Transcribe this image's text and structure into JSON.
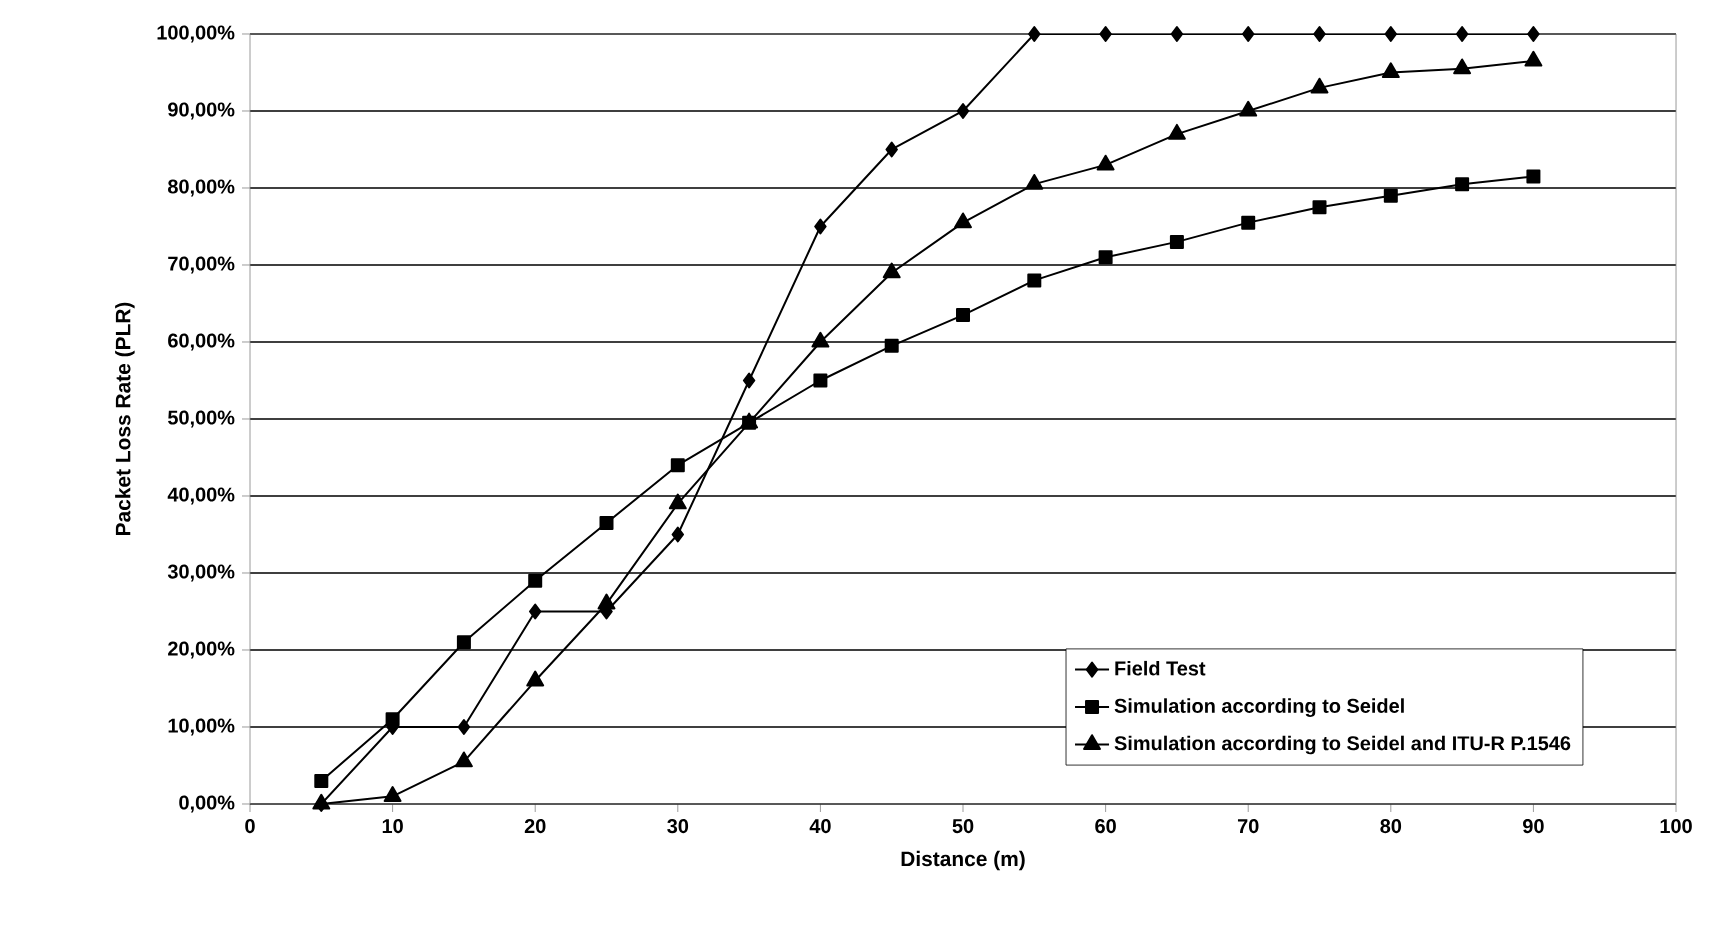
{
  "chart_data": {
    "type": "line",
    "xlabel": "Distance (m)",
    "ylabel": "Packet Loss Rate (PLR)",
    "x": [
      5,
      10,
      15,
      20,
      25,
      30,
      35,
      40,
      45,
      50,
      55,
      60,
      65,
      70,
      75,
      80,
      85,
      90
    ],
    "series": [
      {
        "name": "Field Test",
        "color": "#000000",
        "marker": "diamond",
        "values": [
          0,
          10,
          10,
          25,
          25,
          35,
          55,
          75,
          85,
          90,
          100,
          100,
          100,
          100,
          100,
          100,
          100,
          100
        ]
      },
      {
        "name": "Simulation according to Seidel",
        "color": "#000000",
        "marker": "square",
        "values": [
          3,
          11,
          21,
          29,
          36.5,
          44,
          49.5,
          55,
          59.5,
          63.5,
          68,
          71,
          73,
          75.5,
          77.5,
          79,
          80.5,
          81.5
        ]
      },
      {
        "name": "Simulation according to Seidel and ITU-R P.1546",
        "color": "#000000",
        "marker": "triangle",
        "values": [
          0,
          1,
          5.5,
          16,
          26,
          39,
          49.5,
          60,
          69,
          75.5,
          80.5,
          83,
          87,
          90,
          93,
          95,
          95.5,
          96.5
        ]
      }
    ],
    "xlim": [
      0,
      100
    ],
    "xticks": [
      0,
      10,
      20,
      30,
      40,
      50,
      60,
      70,
      80,
      90,
      100
    ],
    "ylim": [
      0,
      100
    ],
    "yticks": [
      {
        "value": 0,
        "label": "0,00%"
      },
      {
        "value": 10,
        "label": "10,00%"
      },
      {
        "value": 20,
        "label": "20,00%"
      },
      {
        "value": 30,
        "label": "30,00%"
      },
      {
        "value": 40,
        "label": "40,00%"
      },
      {
        "value": 50,
        "label": "50,00%"
      },
      {
        "value": 60,
        "label": "60,00%"
      },
      {
        "value": 70,
        "label": "70,00%"
      },
      {
        "value": 80,
        "label": "80,00%"
      },
      {
        "value": 90,
        "label": "90,00%"
      },
      {
        "value": 100,
        "label": "100,00%"
      }
    ],
    "grid": "y",
    "legend": "bottom right",
    "line_style": "solid"
  }
}
